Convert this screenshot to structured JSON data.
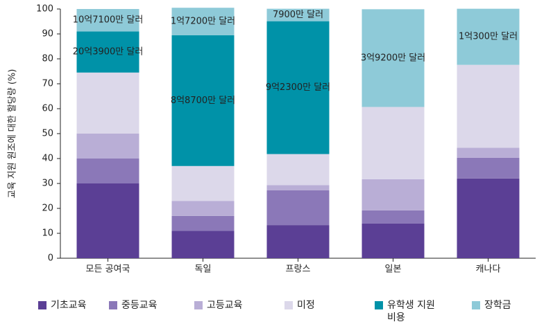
{
  "chart_data": {
    "type": "stacked_bar",
    "y_label": "교육 지원 원조에 대한 할당량 (%)",
    "categories": [
      "모든 공여국",
      "독일",
      "프랑스",
      "일본",
      "캐나다"
    ],
    "ylim": [
      0,
      100
    ],
    "yticks": [
      0,
      10,
      20,
      30,
      40,
      50,
      60,
      70,
      80,
      90,
      100
    ],
    "series": [
      {
        "name": "기초교육",
        "color": "#5b3f95",
        "values": [
          30,
          11,
          13.3,
          13.9,
          32
        ]
      },
      {
        "name": "중등교육",
        "color": "#8b78b8",
        "values": [
          10,
          6,
          14,
          5.3,
          8.3
        ]
      },
      {
        "name": "고등교육",
        "color": "#b9aed6",
        "values": [
          10,
          6,
          2,
          12.5,
          4
        ]
      },
      {
        "name": "미정",
        "color": "#dcd8ea",
        "values": [
          24.5,
          14,
          12.5,
          29,
          33.3
        ]
      },
      {
        "name": "유학생 지원 비용",
        "color": "#0092a8",
        "values": [
          16.5,
          52.5,
          53.3,
          0,
          0
        ],
        "labels": [
          "20억3900만 달러",
          "8억8700만 달러",
          "9억2300만 달러",
          null,
          null
        ]
      },
      {
        "name": "장학금",
        "color": "#8ecad8",
        "values": [
          9,
          11,
          5,
          39.2,
          22.5
        ],
        "labels": [
          "10억7100만 달러",
          "1억7200만 달러",
          "7900만 달러",
          "3억9200만 달러",
          "1억300만 달러"
        ]
      }
    ]
  }
}
